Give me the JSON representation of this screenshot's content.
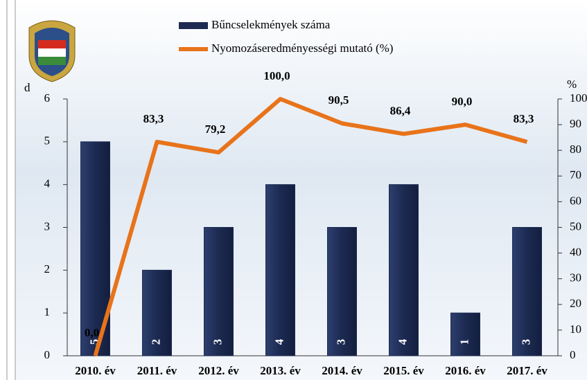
{
  "chart_data": {
    "type": "bar_line",
    "categories": [
      "2010. év",
      "2011. év",
      "2012. év",
      "2013. év",
      "2014. év",
      "2015. év",
      "2016. év",
      "2017. év"
    ],
    "y_label": "d",
    "y2_label": "%",
    "ylim": [
      0,
      6
    ],
    "yticks": [
      0,
      1,
      2,
      3,
      4,
      5,
      6
    ],
    "y2lim": [
      0,
      100
    ],
    "y2ticks": [
      0,
      10,
      20,
      30,
      40,
      50,
      60,
      70,
      80,
      90,
      100
    ],
    "series": [
      {
        "name": "Bűncselekmények száma",
        "type": "bar",
        "color": "#1c2a52",
        "values": [
          5,
          2,
          3,
          4,
          3,
          4,
          1,
          3
        ]
      },
      {
        "name": "Nyomozáseredményességi mutató (%)",
        "type": "line",
        "axis": "y2",
        "color": "#e8731a",
        "values": [
          0.0,
          83.3,
          79.2,
          100.0,
          90.5,
          86.4,
          90.0,
          83.3
        ],
        "value_labels": [
          "0,0",
          "83,3",
          "79,2",
          "100,0",
          "90,5",
          "86,4",
          "90,0",
          "83,3"
        ]
      }
    ]
  }
}
